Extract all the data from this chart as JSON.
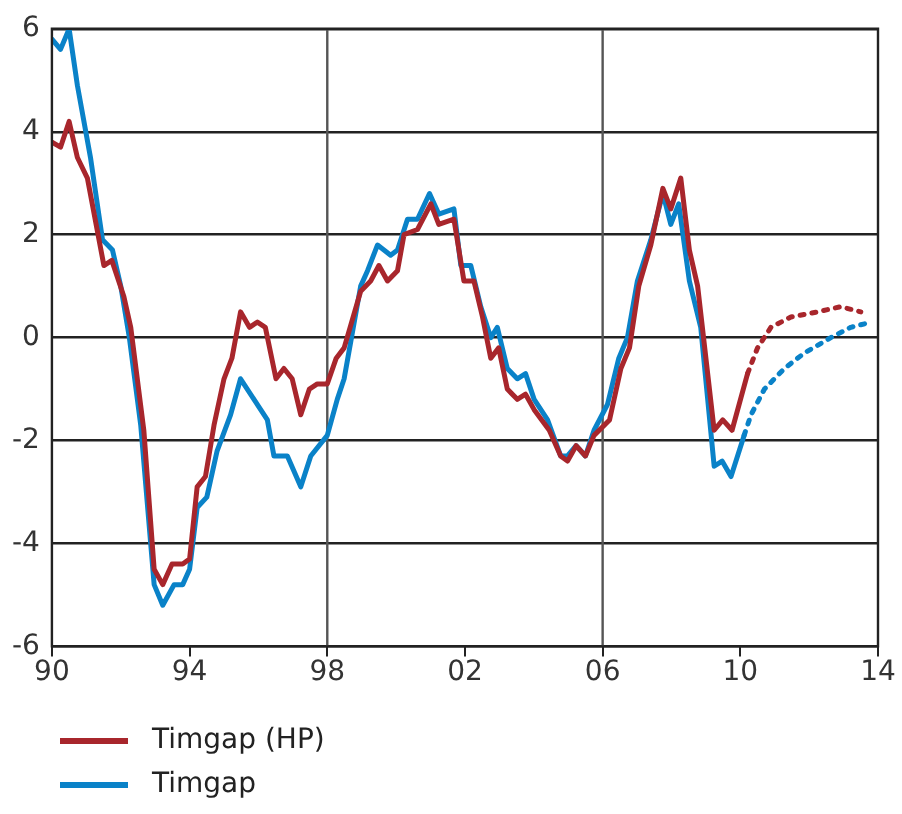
{
  "chart_data": {
    "type": "line",
    "xlim": [
      1990,
      2014
    ],
    "xticks": [
      {
        "value": 1990,
        "label": "90"
      },
      {
        "value": 1994,
        "label": "94"
      },
      {
        "value": 1998,
        "label": "98"
      },
      {
        "value": 2002,
        "label": "02"
      },
      {
        "value": 2006,
        "label": "06"
      },
      {
        "value": 2010,
        "label": "10"
      },
      {
        "value": 2014,
        "label": "14"
      }
    ],
    "ylim": [
      -6,
      6
    ],
    "yticks": [
      -6,
      -4,
      -2,
      0,
      2,
      4,
      6
    ],
    "grid": "y",
    "legend": "bottom left",
    "marker": "none",
    "ref_lines": [
      {
        "axis": "x",
        "value": 1998,
        "color": "#555555"
      },
      {
        "axis": "x",
        "value": 2006,
        "color": "#555555"
      }
    ],
    "series": [
      {
        "name": "Timgap (HP)",
        "color": "#a8262c",
        "line_style": "solid",
        "x": [
          1990,
          1990.25,
          1990.5,
          1990.74,
          1991.03,
          1991.51,
          1991.74,
          1992.09,
          1992.29,
          1992.67,
          1992.97,
          1993.22,
          1993.49,
          1993.8,
          1994,
          1994.22,
          1994.46,
          1994.71,
          1995,
          1995.23,
          1995.48,
          1995.74,
          1995.97,
          1996.2,
          1996.51,
          1996.74,
          1996.98,
          1997.23,
          1997.48,
          1997.71,
          1998,
          1998.26,
          1998.49,
          1998.97,
          1999.26,
          1999.5,
          1999.75,
          2000.04,
          2000.23,
          2000.62,
          2001.01,
          2001.24,
          2001.68,
          2001.97,
          2002.26,
          2002.51,
          2002.75,
          2002.98,
          2003.23,
          2003.52,
          2003.76,
          2004.01,
          2004.45,
          2004.78,
          2004.98,
          2005.23,
          2005.5,
          2005.75,
          2006.2,
          2006.53,
          2006.78,
          2007.05,
          2007.4,
          2007.75,
          2007.98,
          2008.27,
          2008.52,
          2008.76,
          2009.24,
          2009.49,
          2009.76,
          2010.21
        ],
        "values": [
          3.8,
          3.7,
          4.2,
          3.5,
          3.1,
          1.4,
          1.5,
          0.8,
          0.2,
          -1.8,
          -4.5,
          -4.8,
          -4.4,
          -4.4,
          -4.3,
          -2.9,
          -2.7,
          -1.7,
          -0.8,
          -0.4,
          0.5,
          0.2,
          0.3,
          0.2,
          -0.8,
          -0.6,
          -0.8,
          -1.5,
          -1.0,
          -0.9,
          -0.9,
          -0.4,
          -0.2,
          0.9,
          1.1,
          1.4,
          1.1,
          1.3,
          2.0,
          2.1,
          2.6,
          2.2,
          2.3,
          1.1,
          1.1,
          0.4,
          -0.4,
          -0.2,
          -1.0,
          -1.2,
          -1.1,
          -1.4,
          -1.8,
          -2.3,
          -2.4,
          -2.1,
          -2.3,
          -1.9,
          -1.6,
          -0.6,
          -0.2,
          1.0,
          1.8,
          2.9,
          2.5,
          3.1,
          1.7,
          1.0,
          -1.8,
          -1.6,
          -1.8,
          -0.7
        ]
      },
      {
        "name": "Timgap",
        "color": "#0a82c8",
        "line_style": "solid",
        "x": [
          1990,
          1990.25,
          1990.5,
          1990.74,
          1991.12,
          1991.47,
          1991.76,
          1992,
          1992.25,
          1992.58,
          1992.97,
          1993.22,
          1993.55,
          1993.8,
          1994,
          1994.22,
          1994.5,
          1994.8,
          1995.19,
          1995.48,
          1995.87,
          1996.26,
          1996.45,
          1996.84,
          1997.23,
          1997.52,
          1998,
          1998.29,
          1998.49,
          1998.97,
          1999.17,
          1999.46,
          1999.84,
          2000.04,
          2000.33,
          2000.62,
          2000.97,
          2001.24,
          2001.68,
          2001.88,
          2002.17,
          2002.46,
          2002.75,
          2002.94,
          2003.23,
          2003.52,
          2003.76,
          2004.01,
          2004.4,
          2004.78,
          2004.98,
          2005.23,
          2005.5,
          2005.75,
          2006.14,
          2006.47,
          2006.72,
          2007.01,
          2007.4,
          2007.75,
          2007.98,
          2008.21,
          2008.52,
          2008.85,
          2009.24,
          2009.47,
          2009.73,
          2010.11
        ],
        "values": [
          5.8,
          5.6,
          6.0,
          4.9,
          3.5,
          1.9,
          1.7,
          1.0,
          0.0,
          -1.7,
          -4.8,
          -5.2,
          -4.8,
          -4.8,
          -4.5,
          -3.3,
          -3.1,
          -2.2,
          -1.5,
          -0.8,
          -1.2,
          -1.6,
          -2.3,
          -2.3,
          -2.9,
          -2.3,
          -1.9,
          -1.2,
          -0.8,
          1.0,
          1.3,
          1.8,
          1.6,
          1.7,
          2.3,
          2.3,
          2.8,
          2.4,
          2.5,
          1.4,
          1.4,
          0.6,
          0.0,
          0.2,
          -0.6,
          -0.8,
          -0.7,
          -1.2,
          -1.6,
          -2.3,
          -2.3,
          -2.1,
          -2.3,
          -1.8,
          -1.3,
          -0.4,
          0.0,
          1.1,
          1.9,
          2.8,
          2.2,
          2.6,
          1.1,
          0.2,
          -2.5,
          -2.4,
          -2.7,
          -1.9
        ]
      },
      {
        "color": "#a8262c",
        "line_style": "dotted",
        "x": [
          2010.21,
          2010.5,
          2010.89,
          2011.47,
          2012.24,
          2012.92,
          2013.5
        ],
        "values": [
          -0.7,
          -0.2,
          0.2,
          0.4,
          0.5,
          0.6,
          0.5
        ]
      },
      {
        "color": "#0a82c8",
        "line_style": "dotted",
        "x": [
          2010.11,
          2010.31,
          2010.7,
          2011.28,
          2011.86,
          2012.63,
          2013.21,
          2013.8
        ],
        "values": [
          -1.9,
          -1.5,
          -1.0,
          -0.6,
          -0.3,
          0.0,
          0.2,
          0.3
        ]
      }
    ]
  }
}
